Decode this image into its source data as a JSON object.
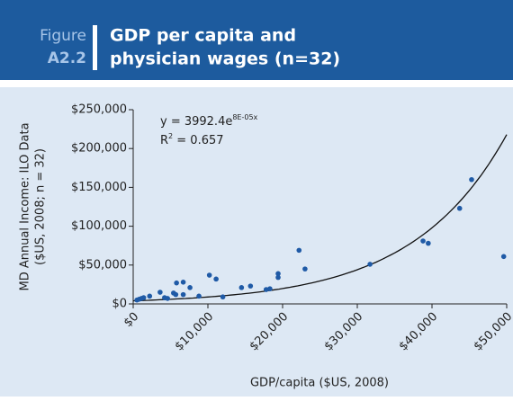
{
  "figure_label": "Figure",
  "figure_number": "A2.2",
  "chart_data": {
    "type": "scatter",
    "title_lines": [
      "GDP per capita and",
      "physician wages (n=32)"
    ],
    "x_label": "GDP/capita ($US, 2008)",
    "y_label_lines": [
      "MD Annual Income: ILO Data",
      "($US, 2008; n = 32)"
    ],
    "trend_equation": "y = 3992.4e",
    "trend_exponent": "8E-05x",
    "r2_prefix": "R",
    "r2_power": "2",
    "r2_value": " = 0.657",
    "color": "#1f5aa6",
    "x": [
      500,
      800,
      1100,
      1400,
      2200,
      3600,
      4200,
      4600,
      5400,
      5700,
      5800,
      6700,
      6700,
      7600,
      8800,
      10200,
      11100,
      12000,
      14500,
      15700,
      17800,
      18300,
      19400,
      19400,
      22200,
      23000,
      31700,
      38800,
      39500,
      43700,
      45300,
      49600
    ],
    "values": [
      5000,
      6000,
      7000,
      8000,
      10000,
      15000,
      8000,
      7000,
      14000,
      12000,
      27000,
      28000,
      12000,
      21000,
      10000,
      37000,
      32000,
      9000,
      21000,
      23000,
      18500,
      19500,
      39000,
      34000,
      69000,
      45000,
      51000,
      81000,
      78000,
      123000,
      160000,
      61000
    ],
    "xlim": [
      0,
      50000
    ],
    "ylim": [
      0,
      250000
    ],
    "xticks": [
      {
        "value": 0,
        "label": "$0"
      },
      {
        "value": 10000,
        "label": "$10,000"
      },
      {
        "value": 20000,
        "label": "$20,000"
      },
      {
        "value": 30000,
        "label": "$30,000"
      },
      {
        "value": 40000,
        "label": "$40,000"
      },
      {
        "value": 50000,
        "label": "$50,000"
      }
    ],
    "yticks": [
      {
        "value": 0,
        "label": "$0"
      },
      {
        "value": 50000,
        "label": "$50,000"
      },
      {
        "value": 100000,
        "label": "$100,000"
      },
      {
        "value": 150000,
        "label": "$150,000"
      },
      {
        "value": 200000,
        "label": "$200,000"
      },
      {
        "value": 250000,
        "label": "$250,000"
      }
    ]
  }
}
